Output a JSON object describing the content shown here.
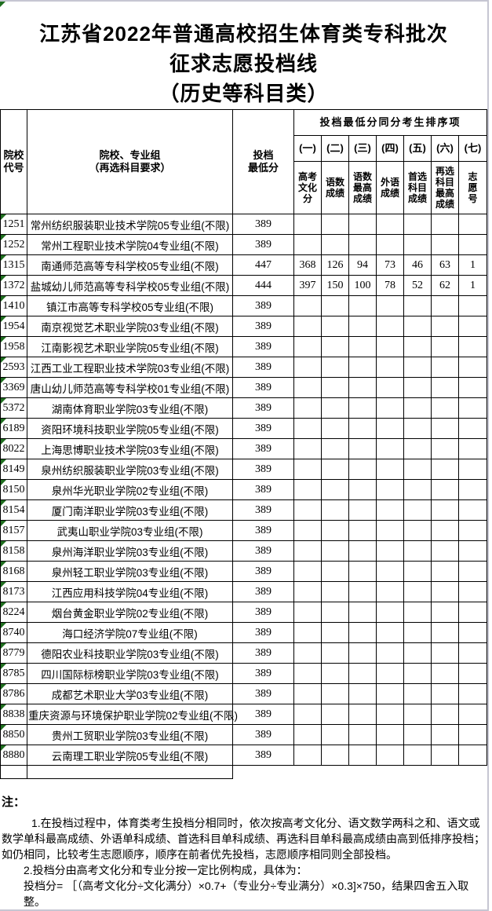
{
  "page": {
    "title_lines": {
      "l1": "江苏省2022年普通高校招生体育类专科批次",
      "l2": "征求志愿投档线",
      "l3": "（历史等科目类）"
    }
  },
  "colors": {
    "triangle_green": "#1f6e1f",
    "frame_gray": "#c6c6d2",
    "grid_border": "#000000"
  },
  "table": {
    "headers": {
      "col_code": "院校代号",
      "col_school_lines": {
        "l1": "院校、专业组",
        "l2": "（再选科目要求）"
      },
      "col_score_lines": {
        "l1": "投档",
        "l2": "最低分"
      },
      "sort_group_title": "投档最低分同分考生排序项",
      "sort_cols": [
        {
          "num": "(一)",
          "label": "高考文化分"
        },
        {
          "num": "(二)",
          "label": "语数成绩"
        },
        {
          "num": "(三)",
          "label": "语数最高成绩"
        },
        {
          "num": "(四)",
          "label": "外语成绩"
        },
        {
          "num": "(五)",
          "label": "首选科目成绩"
        },
        {
          "num": "(六)",
          "label": "再选科目最高成绩"
        },
        {
          "num": "(七)",
          "label": "志愿号"
        }
      ]
    },
    "rows": [
      {
        "code": "1251",
        "school": "常州纺织服装职业技术学院05专业组(不限)",
        "score": "389",
        "sort": [
          "",
          "",
          "",
          "",
          "",
          "",
          ""
        ]
      },
      {
        "code": "1252",
        "school": "常州工程职业技术学院04专业组(不限)",
        "score": "389",
        "sort": [
          "",
          "",
          "",
          "",
          "",
          "",
          ""
        ]
      },
      {
        "code": "1315",
        "school": "南通师范高等专科学校05专业组(不限)",
        "score": "447",
        "sort": [
          "368",
          "126",
          "94",
          "73",
          "46",
          "63",
          "1"
        ]
      },
      {
        "code": "1372",
        "school": "盐城幼儿师范高等专科学校05专业组(不限)",
        "score": "444",
        "sort": [
          "397",
          "150",
          "100",
          "78",
          "52",
          "62",
          "1"
        ]
      },
      {
        "code": "1410",
        "school": "镇江市高等专科学校05专业组(不限)",
        "score": "389",
        "sort": [
          "",
          "",
          "",
          "",
          "",
          "",
          ""
        ]
      },
      {
        "code": "1954",
        "school": "南京视觉艺术职业学院03专业组(不限)",
        "score": "389",
        "sort": [
          "",
          "",
          "",
          "",
          "",
          "",
          ""
        ]
      },
      {
        "code": "1958",
        "school": "江南影视艺术职业学院05专业组(不限)",
        "score": "389",
        "sort": [
          "",
          "",
          "",
          "",
          "",
          "",
          ""
        ]
      },
      {
        "code": "2593",
        "school": "江西工业工程职业技术学院03专业组(不限)",
        "score": "389",
        "sort": [
          "",
          "",
          "",
          "",
          "",
          "",
          ""
        ]
      },
      {
        "code": "3369",
        "school": "唐山幼儿师范高等专科学校01专业组(不限)",
        "score": "389",
        "sort": [
          "",
          "",
          "",
          "",
          "",
          "",
          ""
        ]
      },
      {
        "code": "5372",
        "school": "湖南体育职业学院03专业组(不限)",
        "score": "389",
        "sort": [
          "",
          "",
          "",
          "",
          "",
          "",
          ""
        ]
      },
      {
        "code": "6189",
        "school": "资阳环境科技职业学院05专业组(不限)",
        "score": "389",
        "sort": [
          "",
          "",
          "",
          "",
          "",
          "",
          ""
        ]
      },
      {
        "code": "8022",
        "school": "上海思博职业技术学院03专业组(不限)",
        "score": "389",
        "sort": [
          "",
          "",
          "",
          "",
          "",
          "",
          ""
        ]
      },
      {
        "code": "8149",
        "school": "泉州纺织服装职业学院03专业组(不限)",
        "score": "389",
        "sort": [
          "",
          "",
          "",
          "",
          "",
          "",
          ""
        ]
      },
      {
        "code": "8150",
        "school": "泉州华光职业学院02专业组(不限)",
        "score": "389",
        "sort": [
          "",
          "",
          "",
          "",
          "",
          "",
          ""
        ]
      },
      {
        "code": "8154",
        "school": "厦门南洋职业学院03专业组(不限)",
        "score": "389",
        "sort": [
          "",
          "",
          "",
          "",
          "",
          "",
          ""
        ]
      },
      {
        "code": "8157",
        "school": "武夷山职业学院03专业组(不限)",
        "score": "389",
        "sort": [
          "",
          "",
          "",
          "",
          "",
          "",
          ""
        ]
      },
      {
        "code": "8158",
        "school": "泉州海洋职业学院03专业组(不限)",
        "score": "389",
        "sort": [
          "",
          "",
          "",
          "",
          "",
          "",
          ""
        ]
      },
      {
        "code": "8168",
        "school": "泉州轻工职业学院03专业组(不限)",
        "score": "389",
        "sort": [
          "",
          "",
          "",
          "",
          "",
          "",
          ""
        ]
      },
      {
        "code": "8173",
        "school": "江西应用科技学院04专业组(不限)",
        "score": "389",
        "sort": [
          "",
          "",
          "",
          "",
          "",
          "",
          ""
        ]
      },
      {
        "code": "8224",
        "school": "烟台黄金职业学院02专业组(不限)",
        "score": "389",
        "sort": [
          "",
          "",
          "",
          "",
          "",
          "",
          ""
        ]
      },
      {
        "code": "8740",
        "school": "海口经济学院07专业组(不限)",
        "score": "389",
        "sort": [
          "",
          "",
          "",
          "",
          "",
          "",
          ""
        ]
      },
      {
        "code": "8779",
        "school": "德阳农业科技职业学院03专业组(不限)",
        "score": "389",
        "sort": [
          "",
          "",
          "",
          "",
          "",
          "",
          ""
        ]
      },
      {
        "code": "8785",
        "school": "四川国际标榜职业学院03专业组(不限)",
        "score": "389",
        "sort": [
          "",
          "",
          "",
          "",
          "",
          "",
          ""
        ]
      },
      {
        "code": "8786",
        "school": "成都艺术职业大学03专业组(不限)",
        "score": "389",
        "sort": [
          "",
          "",
          "",
          "",
          "",
          "",
          ""
        ]
      },
      {
        "code": "8838",
        "school": "重庆资源与环境保护职业学院02专业组(不限)",
        "score": "389",
        "sort": [
          "",
          "",
          "",
          "",
          "",
          "",
          ""
        ]
      },
      {
        "code": "8850",
        "school": "贵州工贸职业学院03专业组(不限)",
        "score": "389",
        "sort": [
          "",
          "",
          "",
          "",
          "",
          "",
          ""
        ]
      },
      {
        "code": "8880",
        "school": "云南理工职业学院05专业组(不限)",
        "score": "389",
        "sort": [
          "",
          "",
          "",
          "",
          "",
          "",
          ""
        ]
      }
    ]
  },
  "notes": {
    "label": "注：",
    "note1": "1.在投档过程中，体育类考生投档分相同时，依次按高考文化分、语文数学两科之和、语文或数学单科最高成绩、外语单科成绩、首选科目单科成绩、再选科目单科最高成绩由高到低排序投档；如仍相同，比较考生志愿顺序，顺序在前者优先投档，志愿顺序相同则全部投档。",
    "note2": "2.投档分由高考文化分和专业分按一定比例构成，具体为：",
    "note3": "投档分= ［（高考文化分÷文化满分）×0.7+（专业分÷专业满分）×0.3]×750，结果四舍五入取整。"
  }
}
